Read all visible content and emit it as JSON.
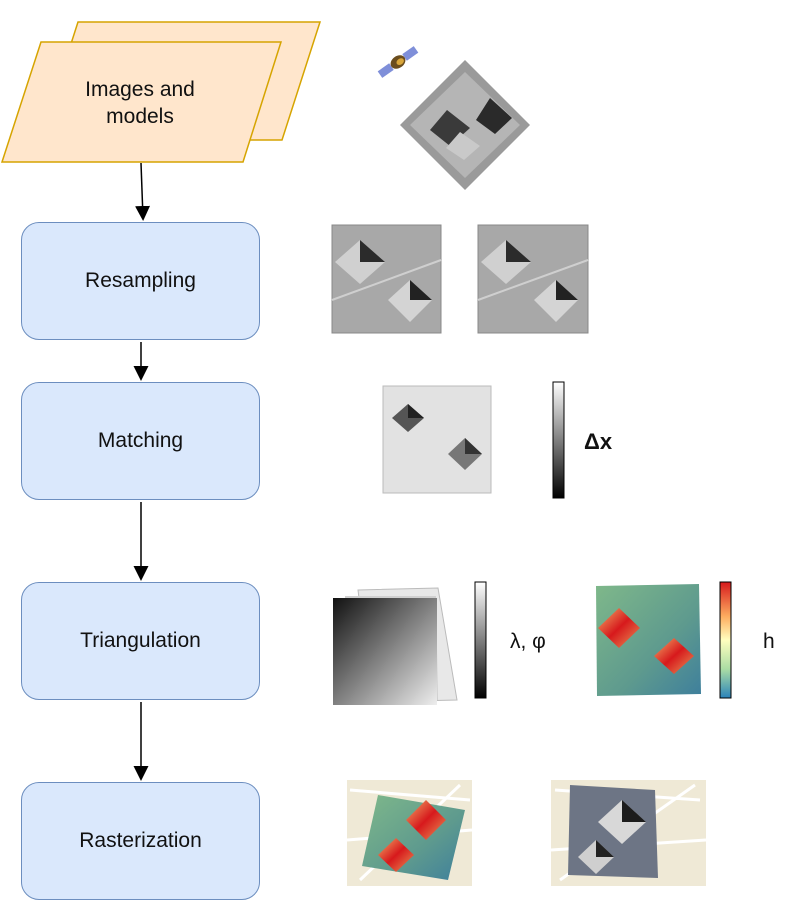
{
  "input": {
    "label_line1": "Images and",
    "label_line2": "models"
  },
  "steps": [
    {
      "label": "Resampling"
    },
    {
      "label": "Matching"
    },
    {
      "label": "Triangulation"
    },
    {
      "label": "Rasterization"
    }
  ],
  "colorbars": {
    "disparity_label": "Δx",
    "coords_label": "λ, φ",
    "height_label": "h"
  },
  "colors": {
    "step_fill": "#dae8fc",
    "step_stroke": "#6c8ebf",
    "input_fill": "#ffe6cc",
    "input_stroke": "#d6a400"
  }
}
